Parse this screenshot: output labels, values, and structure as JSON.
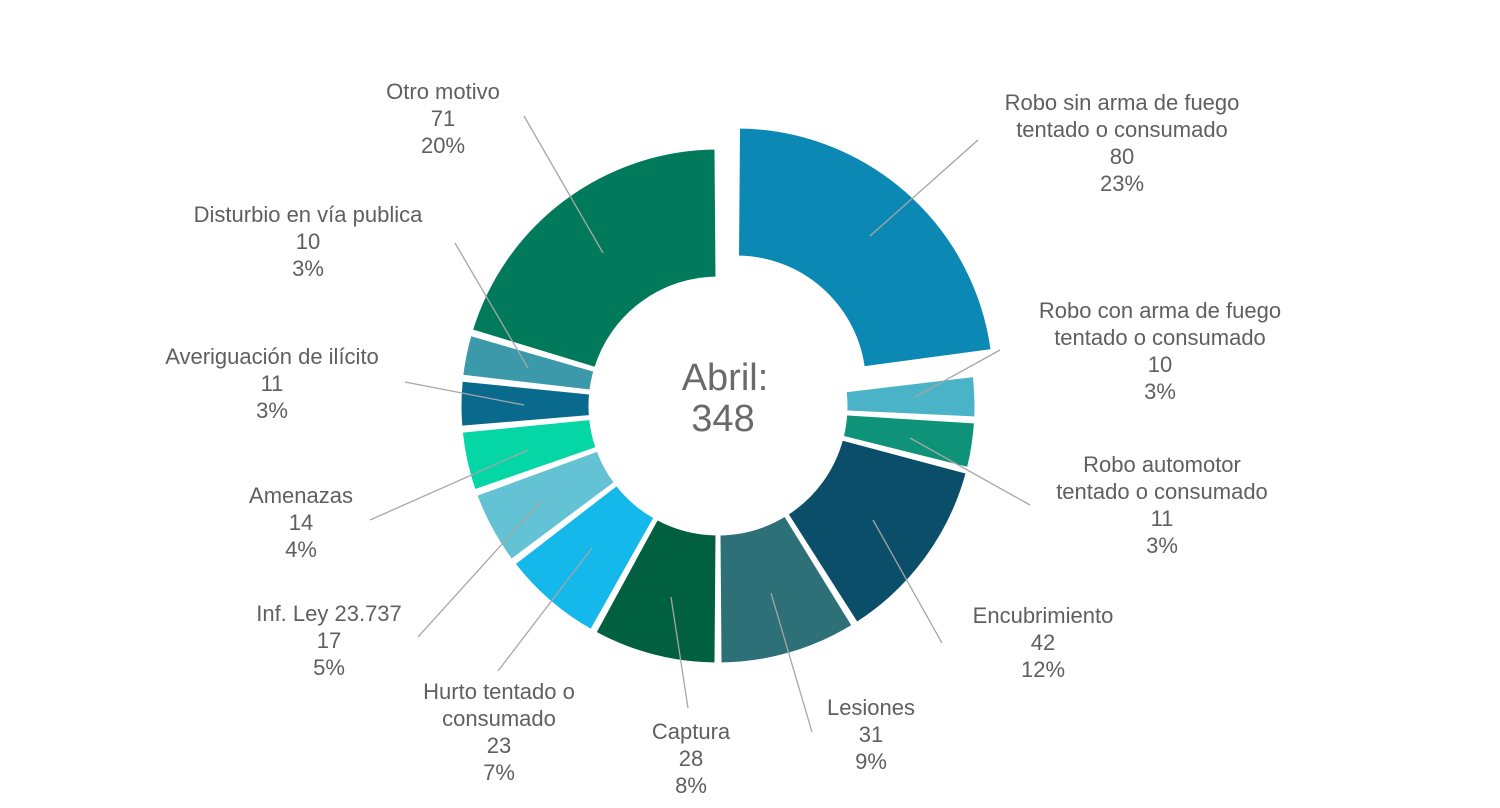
{
  "chart_data": {
    "type": "donut",
    "center_label": [
      "Abril:",
      "348"
    ],
    "total": 348,
    "slices": [
      {
        "label": [
          "Robo sin arma de fuego",
          "tentado o consumado"
        ],
        "value": 80,
        "percent": "23%",
        "color": "#0b88b3",
        "exploded": true
      },
      {
        "label": [
          "Robo con arma de fuego",
          "tentado o consumado"
        ],
        "value": 10,
        "percent": "3%",
        "color": "#4bb3c7",
        "exploded": false
      },
      {
        "label": [
          "Robo automotor",
          "tentado o consumado"
        ],
        "value": 11,
        "percent": "3%",
        "color": "#0e9378",
        "exploded": false
      },
      {
        "label": [
          "Encubrimiento"
        ],
        "value": 42,
        "percent": "12%",
        "color": "#0a4e69",
        "exploded": false
      },
      {
        "label": [
          "Lesiones"
        ],
        "value": 31,
        "percent": "9%",
        "color": "#2d7078",
        "exploded": false
      },
      {
        "label": [
          "Captura"
        ],
        "value": 28,
        "percent": "8%",
        "color": "#00603f",
        "exploded": false
      },
      {
        "label": [
          "Hurto tentado o",
          "consumado"
        ],
        "value": 23,
        "percent": "7%",
        "color": "#14b8ea",
        "exploded": false
      },
      {
        "label": [
          "Inf. Ley 23.737"
        ],
        "value": 17,
        "percent": "5%",
        "color": "#63c2d4",
        "exploded": false
      },
      {
        "label": [
          "Amenazas"
        ],
        "value": 14,
        "percent": "4%",
        "color": "#05d6a5",
        "exploded": false
      },
      {
        "label": [
          "Averiguación de ilícito"
        ],
        "value": 11,
        "percent": "3%",
        "color": "#0a6a8e",
        "exploded": false
      },
      {
        "label": [
          "Disturbio en vía publica"
        ],
        "value": 10,
        "percent": "3%",
        "color": "#3b99a9",
        "exploded": false
      },
      {
        "label": [
          "Otro motivo"
        ],
        "value": 71,
        "percent": "20%",
        "color": "#007a5a",
        "exploded": false
      }
    ]
  }
}
